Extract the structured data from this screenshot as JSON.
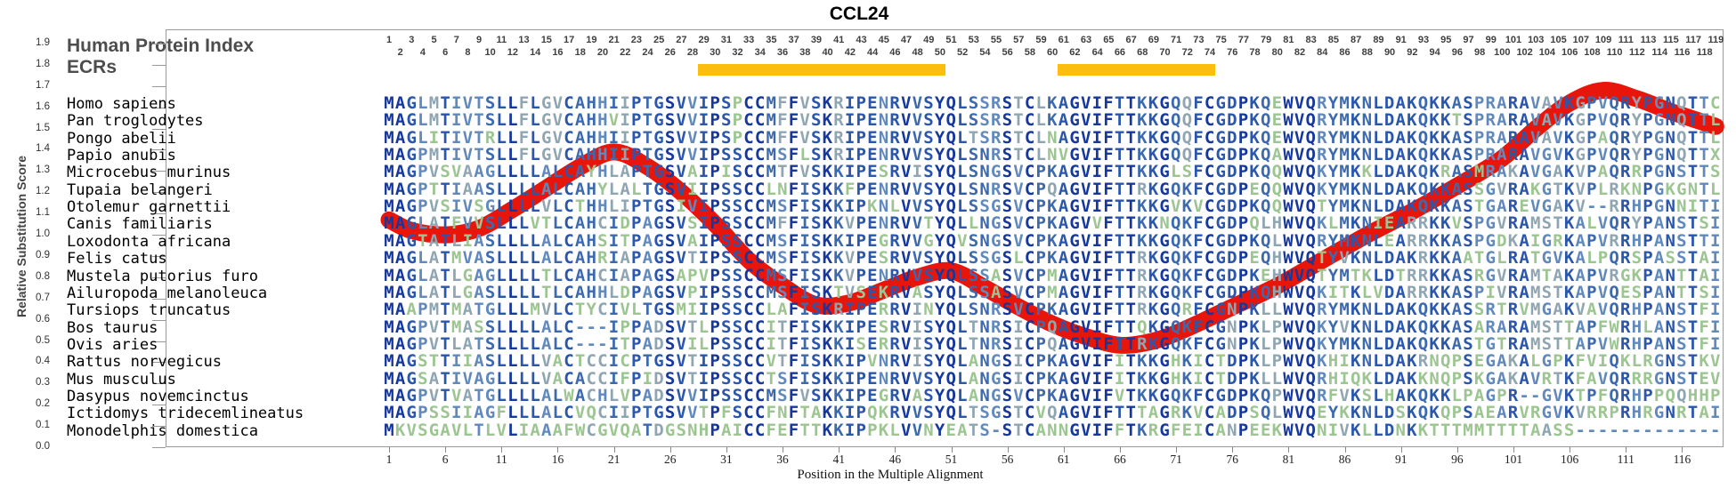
{
  "title": "CCL24",
  "y_axis": {
    "label": "Relative Substitution Score",
    "min": 0.0,
    "max": 1.9,
    "step": 0.1
  },
  "x_axis": {
    "label": "Position in the Multiple Alignment",
    "ticks": [
      1,
      6,
      11,
      16,
      21,
      26,
      31,
      36,
      41,
      46,
      51,
      56,
      61,
      66,
      71,
      76,
      81,
      86,
      91,
      96,
      101,
      106,
      111,
      116
    ]
  },
  "header": {
    "index_label": "Human Protein Index",
    "ecr_label": "ECRs",
    "index_start": 1,
    "index_end": 119
  },
  "ecr_regions": [
    {
      "start": 29,
      "end": 50
    },
    {
      "start": 61,
      "end": 74
    }
  ],
  "colors": {
    "ecr_bar": "#FBBE0E",
    "score_line": "#E8150A",
    "conservation_palette": [
      "#16389C",
      "#2A56AC",
      "#3D6AAE",
      "#6189BC",
      "#8FA6B2",
      "#9CC592"
    ],
    "gap": "#6189BC",
    "index_text": "#3F3F3F"
  },
  "alignment": {
    "columns": 119,
    "species": [
      {
        "name": "Homo sapiens",
        "sequence": "MAGLMTIVTSLLFLGVCAHHIIPTGSVVIPSPCCMFFVSKRIPENRVVSYQLSSRSTCLKAGVIFTTKKGQQFCGDPKQEWVQRYMKNLDAKQKKASPRARAVAVKGPVQRYPGNQTTC"
      },
      {
        "name": "Pan troglodytes",
        "sequence": "MAGLMTIVTSLLFLGVCAHHVIPTGSVVIPSPCCMFFVSKRIPENRVVSYQLSSRSTCLKAGVIFTTKKGQQFCGDPKQEWVQRYMKNLDAKQKKTSPRARAVAVKGPVQRYPGNQTTL"
      },
      {
        "name": "Pongo abelii",
        "sequence": "MAGLITIVTRLLFLGVCAHHIIPTGSVVIPSPCCMFFVSKRIPENRVVSYQLTSRSTCLNAGVIFTTKKGQQFCGDPKQEWVQRYMKNLDAKQKKASPRARAVAVKGPAQRYPGNQTTL"
      },
      {
        "name": "Papio anubis",
        "sequence": "MAGPMTIVTSLLFLGVCAHHIIPTGSVVIPSSCCMSFLSKRIPENRVVSYQLSNRSTCLNVGVIFTTKKGQQFCGDPKQAWVQRYMKNLDAKQKKASPRARAVGVKGPVQRYPGNQTTX"
      },
      {
        "name": "Microcebus murinus",
        "sequence": "MAGPVSVAAGLLLLALCAYHLAPTGSVAIPISCCMTFVSKKIPESRVISYQLSNGSVCPKAGVIFTTKKGLSFCGDPKQQWVQKYMKKLDAKQKRASMRAKAVGAKVPAQRRPGNSTTS"
      },
      {
        "name": "Tupaia belangeri",
        "sequence": "MAGPTTIAASLLLLALCAHYLALTGSVIIPSSCCLNFISKKFPENRVVSYQLSNRSVCPQAGVIFTTRKGQKFCGDPEQQWVQKYMKNLDAKQKKASSGVRAKGTKVPLRKNPGKGNTL"
      },
      {
        "name": "Otolemur garnettii",
        "sequence": "MAGPVSIVSGLLLLVLCTHHLIPTGSIVIPSSCCMSFISKKIPKNLVVSYQLSSGSVCPKAGVIFTTKKGVKVCGDPKQQWVQTYMKNLDAKQKKASTGAREVGAKV--RRHPGNNITI"
      },
      {
        "name": "Canis familiaris",
        "sequence": "MAGLATFVVSLLLVTLCAHCIDPAGSVSIPSSCCMFFISKKVPENRVVTYQLLNGSVCPKAGVVFTTKKNQKFCGDPQLHWVQKLMKNIEARRKKVSPGVRAMSTKALVQRYPANSTSI"
      },
      {
        "name": "Loxodonta africana",
        "sequence": "MAGTATLIASLLLLALCAHSITPAGSVAIPSSCCMSFISKKIPEGRVVGYQVSNGSVCPKAGVIFTTKKGQKFCGDPKQLWVQRYMKNLEARRKKASPGDKAIGRKAPVRRHPANSTTI"
      },
      {
        "name": "Felis catus",
        "sequence": "MAGLATMVASLLLLALCAHRIAPAGSVTIPSSCCMSFISKKVPESRVVSYQLSSGSLCPKAGVIFTTRKGQKFCGDPEQHWVQTYVKNLDAKRKKAATGLRATGVKALPQRSPASSTAI"
      },
      {
        "name": "Mustela putorius furo",
        "sequence": "MAGLATLGAGLLLLTLCAHCIAPAGSAPVPSSCCMSFISKKVPENRVVSYQLSSASVCPMAGVIFTTRKGQKFCGDPKEHWVQTYMTKLDTRRKKASRGVRAMTAKAPVRGKPANTTAI"
      },
      {
        "name": "Ailuropoda melanoleuca",
        "sequence": "MAGLATLGASLLLLTLCAHHLDPAGSVPIPSSCCMSFISKTVSEKRVASYQLSSASVCPMAGVIFTTRKGQKFCGDPKQHWVQKITKLVDARRKKASPIVRAMSTKAPVQESPANTTSI"
      },
      {
        "name": "Tursiops truncatus",
        "sequence": "MAAPMTMATGLLLMVLCTYCIVLTGSMIIPSSCCLAFISKRIPERRVINYQLSNRSVCPKAGVIFTTRKGQRFCGNPKLLWVQRYMKNLDAKQKKASSRTRVMGAKVAVQRHPANSTFI"
      },
      {
        "name": "Bos taurus",
        "sequence": "MAGPVTMASSLLLLALC---IPPADSVTLPSSCCITFISKKIPESRVISYQLTNRSICPQAGVIFTTQKGQKFCGNPKLPWVQKYVKNLDAKQKKASARARAMSTTAPFWRHLANSTFI"
      },
      {
        "name": "Ovis aries",
        "sequence": "MAGPVTLATSLLLLALC---ITPADSVILPSSCCITFISKKISERRVISYQLTNRSICPQAGVIFTTRKGQKFCGNPKLPWVQKYMKNLDAKQKKASTGTRAMSTTAPVWRHPANSTFI"
      },
      {
        "name": "Rattus norvegicus",
        "sequence": "MAGSTTIIASLLLLVACTCCICPTGSVTIPSSCCVTFISKKIPVNRVISYQLANGSICPKAGVIFITKKGHKICTDPKLPWVQKHIKNLDAKRNQPSEGAKALGPKFVIQKLRGNSTKV"
      },
      {
        "name": "Mus musculus",
        "sequence": "MAGSATIVAGLLLLVACACCIFPIDSVTIPSSCCTSFISKKIPENRVVSYQLANGSICPKAGVIFITKKGHKICTDPKLLWVQRHIQKLDAKKNQPSKGAKAVRTKFAVQRRRGNSTEV"
      },
      {
        "name": "Dasypus novemcinctus",
        "sequence": "MAGPVTVATGLLLLALWACHLVPADSVVIPSSCCMSFVSKKIPEGRVASYQLANGSVCPKAGVIFVTKKGQKFCGDPKQPWVQRFVKSLHAKQKKLPAGPR--GVKTPFQRHPPQQHHP"
      },
      {
        "name": "Ictidomys tridecemlineatus",
        "sequence": "MAGPSSIIAGFLLLALCVQCIIPTGSVVTPFSCCFNFTAKKIPQKRVVSYQLTSGSTCVQAGVIFTTTAGRKVCADPSQLWVQEYKKNLDSKQKQPSAEARVRGVKVRRPRHRGNRTAI"
      },
      {
        "name": "Monodelphis domestica",
        "sequence": "MKVSGAVLTLVLIAAAFWCGVQATDGSNHPAICCFEFTTKKIPPKLVVNYEATS-STCANNGVIFFTKRGFEICANPEEKWVQNIVKLLDNKKTTTMMTTTTAASS-------------"
      }
    ]
  },
  "chart_data": {
    "type": "line",
    "title": "CCL24",
    "xlabel": "Position in the Multiple Alignment",
    "ylabel": "Relative Substitution Score",
    "xlim": [
      1,
      119
    ],
    "ylim": [
      0.0,
      1.9
    ],
    "x_ticks": [
      1,
      6,
      11,
      16,
      21,
      26,
      31,
      36,
      41,
      46,
      51,
      56,
      61,
      66,
      71,
      76,
      81,
      86,
      91,
      96,
      101,
      106,
      111,
      116
    ],
    "y_ticks": [
      0.0,
      0.1,
      0.2,
      0.3,
      0.4,
      0.5,
      0.6,
      0.7,
      0.8,
      0.9,
      1.0,
      1.1,
      1.2,
      1.3,
      1.4,
      1.5,
      1.6,
      1.7,
      1.8,
      1.9
    ],
    "grid": false,
    "legend": "none",
    "ecr_regions": [
      [
        29,
        50
      ],
      [
        61,
        74
      ]
    ],
    "series": [
      {
        "name": "Relative Substitution Score",
        "color": "#E8150A",
        "points": [
          [
            1,
            1.07
          ],
          [
            3,
            1.02
          ],
          [
            6,
            1.0
          ],
          [
            9,
            1.03
          ],
          [
            12,
            1.12
          ],
          [
            15,
            1.22
          ],
          [
            18,
            1.32
          ],
          [
            21,
            1.39
          ],
          [
            24,
            1.32
          ],
          [
            27,
            1.2
          ],
          [
            30,
            1.05
          ],
          [
            33,
            0.88
          ],
          [
            36,
            0.76
          ],
          [
            39,
            0.67
          ],
          [
            42,
            0.68
          ],
          [
            45,
            0.74
          ],
          [
            48,
            0.8
          ],
          [
            51,
            0.83
          ],
          [
            54,
            0.75
          ],
          [
            57,
            0.66
          ],
          [
            60,
            0.58
          ],
          [
            63,
            0.52
          ],
          [
            66,
            0.48
          ],
          [
            69,
            0.5
          ],
          [
            72,
            0.56
          ],
          [
            76,
            0.66
          ],
          [
            80,
            0.76
          ],
          [
            84,
            0.88
          ],
          [
            88,
            1.0
          ],
          [
            92,
            1.11
          ],
          [
            96,
            1.23
          ],
          [
            100,
            1.36
          ],
          [
            103,
            1.5
          ],
          [
            106,
            1.62
          ],
          [
            109,
            1.68
          ],
          [
            112,
            1.64
          ],
          [
            115,
            1.58
          ],
          [
            119,
            1.51
          ]
        ]
      }
    ]
  }
}
